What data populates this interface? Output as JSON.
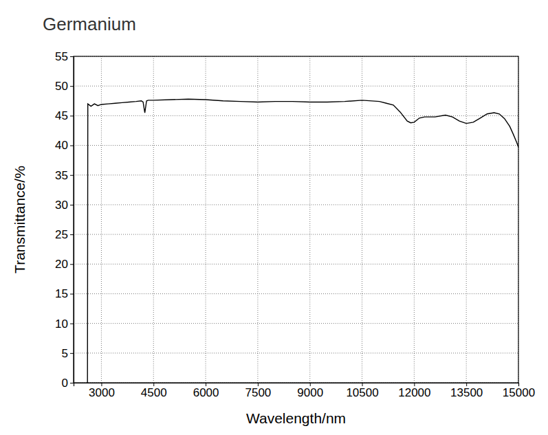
{
  "chart_data": {
    "type": "line",
    "title": "Germanium",
    "x_label": "Wavelength/nm",
    "y_label": "Transmittance/%",
    "x": [
      2600,
      2610,
      2700,
      2800,
      2900,
      3000,
      3200,
      3400,
      3600,
      3800,
      4000,
      4150,
      4200,
      4250,
      4300,
      4350,
      4500,
      5000,
      5500,
      6000,
      6500,
      7000,
      7500,
      8000,
      8500,
      9000,
      9500,
      10000,
      10500,
      11000,
      11200,
      11400,
      11600,
      11800,
      11900,
      12000,
      12150,
      12300,
      12600,
      12900,
      13100,
      13300,
      13500,
      13700,
      13900,
      14100,
      14300,
      14450,
      14600,
      14750,
      14850,
      14950,
      15000
    ],
    "values": [
      0,
      47,
      46.6,
      47,
      46.7,
      46.9,
      47,
      47.1,
      47.2,
      47.3,
      47.4,
      47.5,
      47.3,
      45.5,
      47.5,
      47.6,
      47.6,
      47.7,
      47.8,
      47.7,
      47.5,
      47.4,
      47.3,
      47.4,
      47.4,
      47.3,
      47.3,
      47.4,
      47.6,
      47.4,
      47.1,
      46.8,
      45.6,
      44.1,
      43.8,
      43.9,
      44.6,
      44.8,
      44.8,
      45.1,
      44.8,
      44.1,
      43.7,
      43.9,
      44.6,
      45.3,
      45.5,
      45.3,
      44.5,
      43.2,
      41.9,
      40.5,
      39.7
    ],
    "color": "#000000",
    "xlim": [
      2200,
      15000
    ],
    "xticks": [
      3000,
      4500,
      6000,
      7500,
      9000,
      10500,
      12000,
      13500,
      15000
    ],
    "ylim": [
      0,
      55
    ],
    "yticks": [
      0,
      5,
      10,
      15,
      20,
      25,
      30,
      35,
      40,
      45,
      50,
      55
    ],
    "grid": true
  }
}
